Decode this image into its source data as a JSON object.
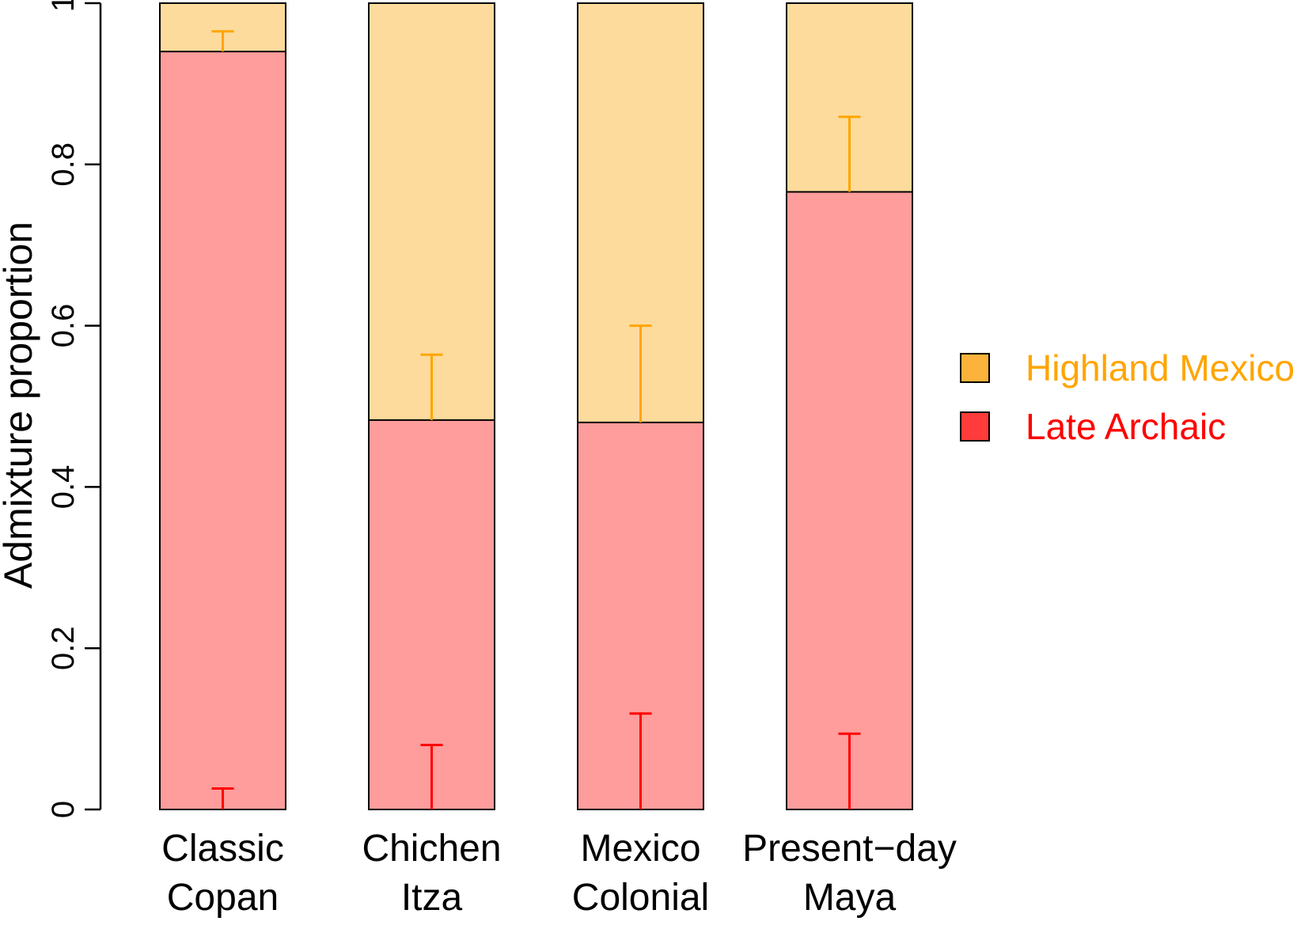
{
  "chart_data": {
    "type": "bar",
    "stacked": true,
    "title": "",
    "xlabel": "",
    "ylabel": "Admixture proportion",
    "ylim": [
      0,
      1
    ],
    "yticks": [
      {
        "value": 0,
        "label": "0"
      },
      {
        "value": 0.2,
        "label": "0.2"
      },
      {
        "value": 0.4,
        "label": "0.4"
      },
      {
        "value": 0.6,
        "label": "0.6"
      },
      {
        "value": 0.8,
        "label": "0.8"
      },
      {
        "value": 1,
        "label": "1"
      }
    ],
    "categories": [
      {
        "line1": "Classic",
        "line2": "Copan"
      },
      {
        "line1": "Chichen",
        "line2": "Itza"
      },
      {
        "line1": "Mexico",
        "line2": "Colonial"
      },
      {
        "line1": "Present−day",
        "line2": "Maya"
      }
    ],
    "series": [
      {
        "name": "Late Archaic",
        "fill": "#ff9c9c",
        "legend_color": "#ff3b3b",
        "text_color": "#ff0000",
        "error_color": "#ff0000",
        "values": [
          0.94,
          0.483,
          0.48,
          0.766
        ],
        "error_bar_from": [
          0,
          0,
          0,
          0
        ],
        "error_bar_to": [
          0.026,
          0.08,
          0.119,
          0.094
        ]
      },
      {
        "name": "Highland Mexico",
        "fill": "#fddb9c",
        "legend_color": "#fbb33b",
        "text_color": "#ffa500",
        "error_color": "#ffa500",
        "values": [
          0.06,
          0.517,
          0.52,
          0.234
        ],
        "error_bar_from": [
          0.94,
          0.483,
          0.48,
          0.766
        ],
        "error_bar_to": [
          0.965,
          0.564,
          0.6,
          0.859
        ]
      }
    ],
    "legend": {
      "position": "right",
      "entries": [
        {
          "label": "Highland Mexico",
          "swatch": "#fbb33b",
          "text_color": "#ffa500"
        },
        {
          "label": "Late Archaic",
          "swatch": "#ff3b3b",
          "text_color": "#ff0000"
        }
      ]
    },
    "grid": false
  }
}
